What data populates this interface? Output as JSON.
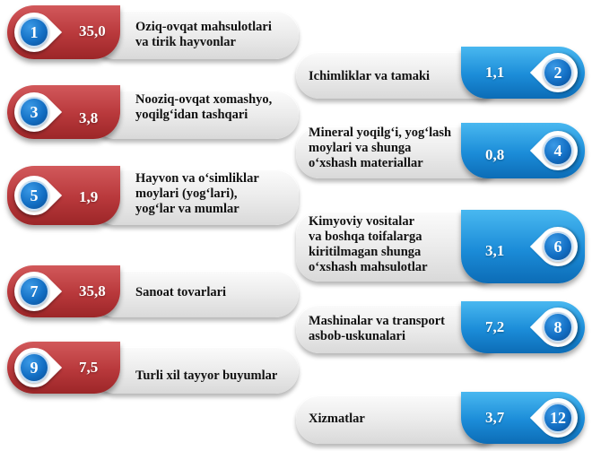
{
  "items": [
    {
      "num": "1",
      "value": "35,0",
      "label": "Oziq-ovqat mahsulotlari\n  va tirik hayvonlar"
    },
    {
      "num": "2",
      "value": "1,1",
      "label": "Ichimliklar va tamaki"
    },
    {
      "num": "3",
      "value": "3,8",
      "label": "Nooziq-ovqat xomashyo,\nyoqilg‘idan tashqari"
    },
    {
      "num": "4",
      "value": "0,8",
      "label": "Mineral yoqilg‘i, yog‘lash\n  moylari va shunga\n  o‘xshash materiallar"
    },
    {
      "num": "5",
      "value": "1,9",
      "label": "Hayvon va o‘simliklar\n  moylari (yog‘lari),\nyog‘lar va mumlar"
    },
    {
      "num": "6",
      "value": "3,1",
      "label": "Kimyoviy vositalar\n  va boshqa toifalarga\n  kiritilmagan shunga\no‘xshash mahsulotlar"
    },
    {
      "num": "7",
      "value": "35,8",
      "label": "Sanoat tovarlari"
    },
    {
      "num": "8",
      "value": "7,2",
      "label": "Mashinalar va transport\n  asbob-uskunalari"
    },
    {
      "num": "9",
      "value": "7,5",
      "label": "Turli xil tayyor buyumlar"
    },
    {
      "num": "12",
      "value": "3,7",
      "label": "Xizmatlar"
    }
  ],
  "colors": {
    "left_pill": "#b8383b",
    "right_pill": "#1b8cd8",
    "number_circle": "#136fc4",
    "card_bar": "#ececec"
  }
}
